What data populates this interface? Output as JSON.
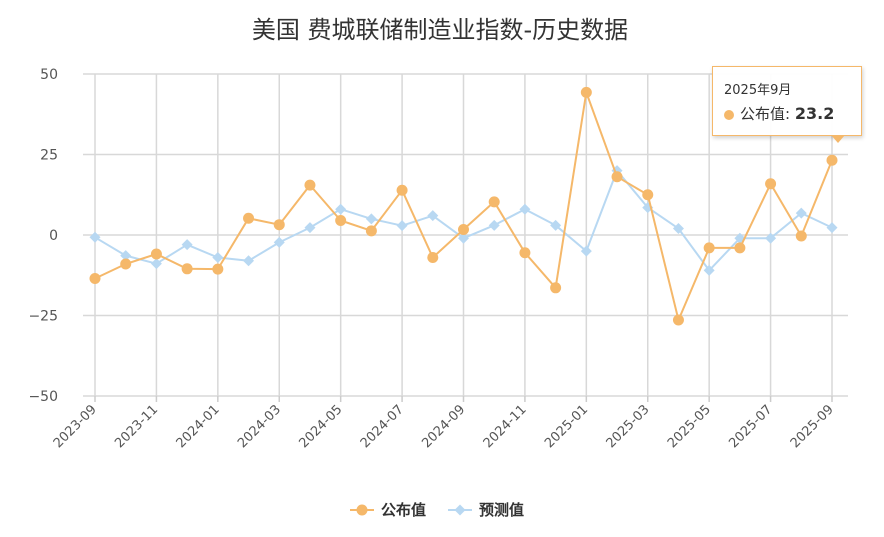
{
  "chart_data": {
    "type": "line",
    "title": "美国 费城联储制造业指数-历史数据",
    "x": [
      "2023-09",
      "2023-10",
      "2023-11",
      "2023-12",
      "2024-01",
      "2024-02",
      "2024-03",
      "2024-04",
      "2024-05",
      "2024-06",
      "2024-07",
      "2024-08",
      "2024-09",
      "2024-10",
      "2024-11",
      "2024-12",
      "2025-01",
      "2025-02",
      "2025-03",
      "2025-04",
      "2025-05",
      "2025-06",
      "2025-07",
      "2025-08",
      "2025-09"
    ],
    "x_tick_labels": [
      "2023-09",
      "2023-11",
      "2024-01",
      "2024-03",
      "2024-05",
      "2024-07",
      "2024-09",
      "2024-11",
      "2025-01",
      "2025-03",
      "2025-05",
      "2025-07",
      "2025-09"
    ],
    "y_tick_labels": [
      "50",
      "25",
      "0",
      "−25",
      "−50"
    ],
    "ylim": [
      -50,
      50
    ],
    "y_ticks": [
      50,
      25,
      0,
      -25,
      -50
    ],
    "grid": true,
    "legend_position": "bottom",
    "series": [
      {
        "name": "公布值",
        "color": "#f5b86a",
        "marker": "circle",
        "values": [
          -13.5,
          -9.0,
          -5.9,
          -10.5,
          -10.6,
          5.2,
          3.2,
          15.5,
          4.5,
          1.3,
          13.9,
          -7.0,
          1.7,
          10.3,
          -5.5,
          -16.4,
          44.3,
          18.1,
          12.5,
          -26.4,
          -4.0,
          -4.0,
          15.9,
          -0.3,
          23.2
        ]
      },
      {
        "name": "预测值",
        "color": "#b8d8f2",
        "marker": "diamond",
        "values": [
          -0.7,
          -6.4,
          -8.9,
          -3.0,
          -7.0,
          -8.0,
          -2.3,
          2.3,
          8.0,
          5.0,
          2.9,
          6.0,
          -1.0,
          3.0,
          8.0,
          3.0,
          -5.0,
          20.0,
          8.5,
          2.0,
          -11.0,
          -1.0,
          -1.0,
          6.8,
          2.3
        ]
      }
    ],
    "tooltip": {
      "date": "2025年9月",
      "series_label": "公布值:",
      "value": "23.2",
      "index": 24
    }
  }
}
